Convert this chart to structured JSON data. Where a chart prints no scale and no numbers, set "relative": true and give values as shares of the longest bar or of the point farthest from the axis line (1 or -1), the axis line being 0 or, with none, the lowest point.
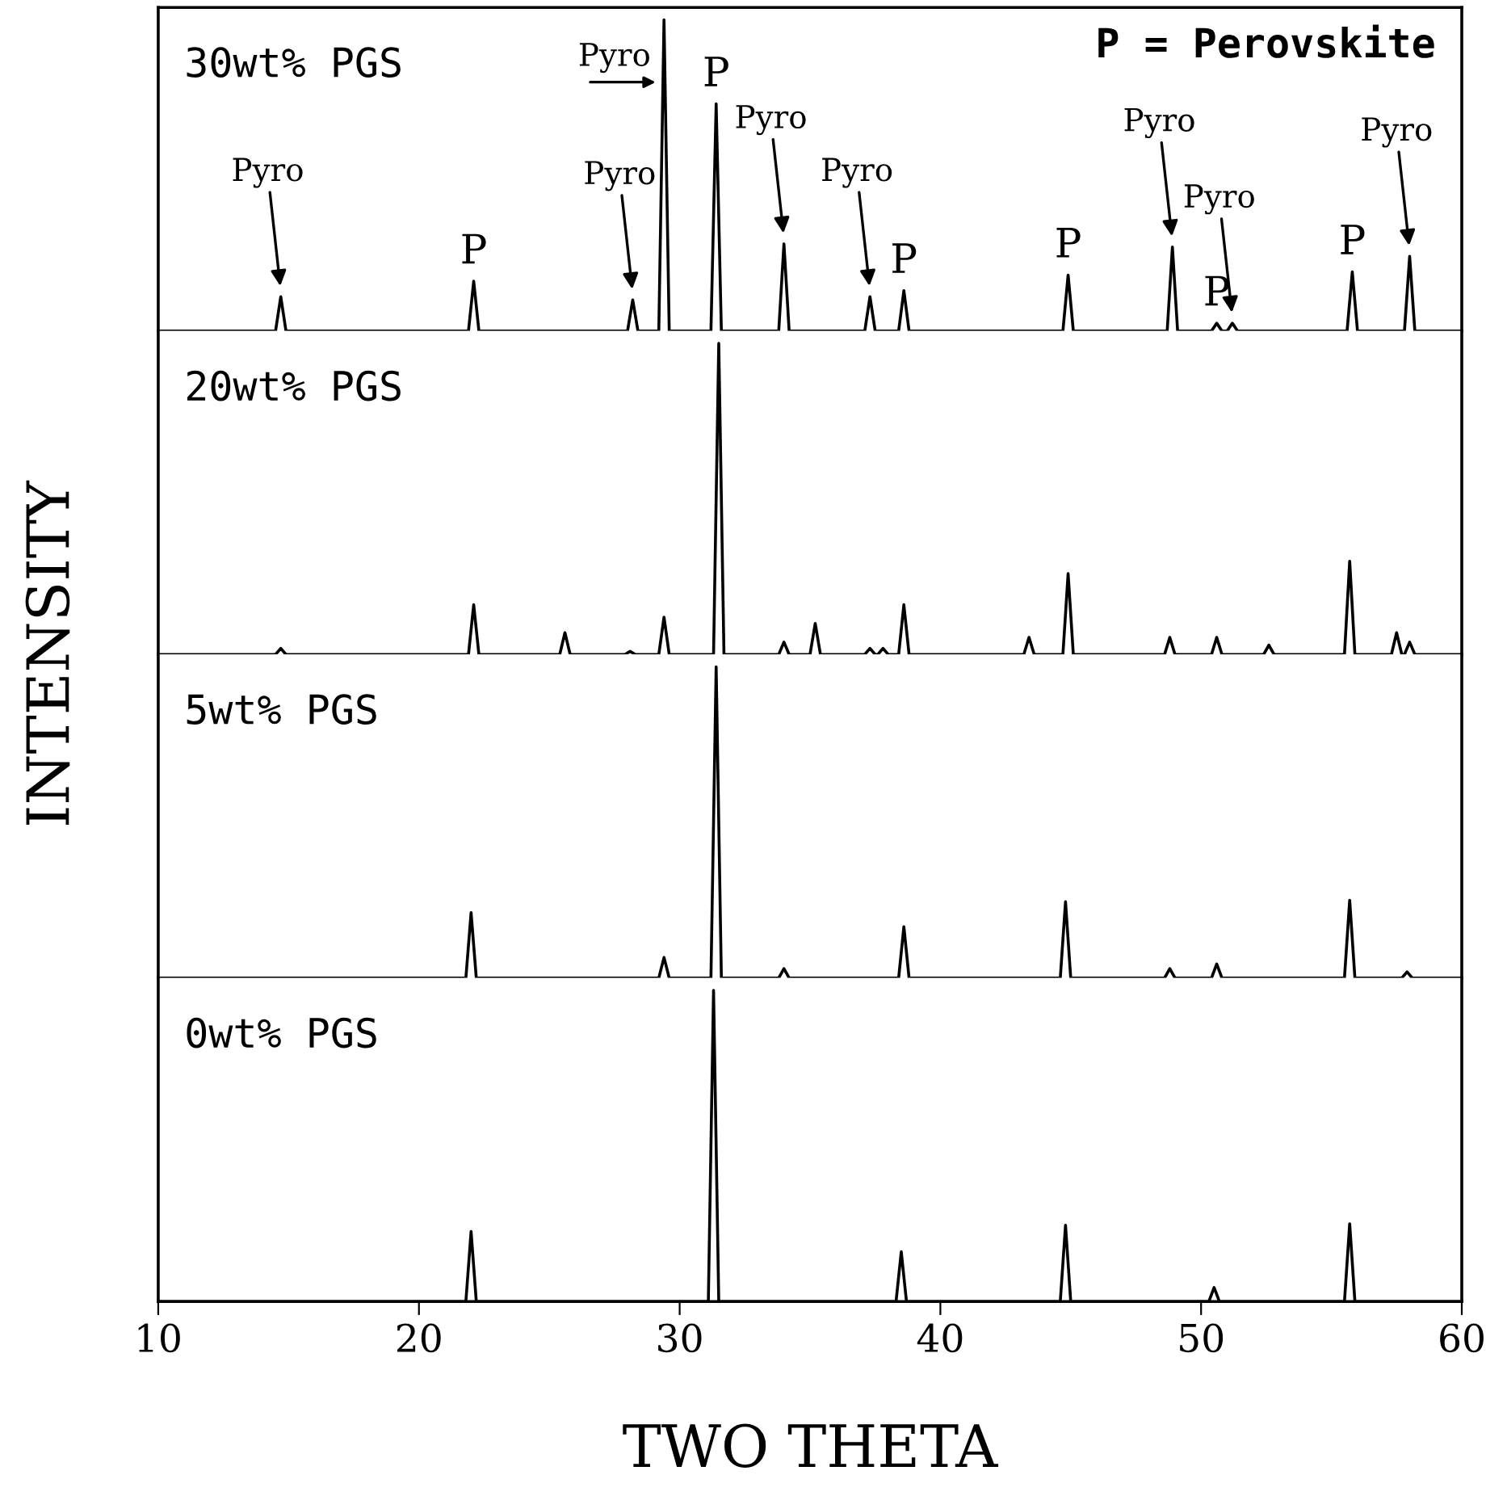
{
  "chart_data": [
    {
      "type": "line",
      "title": "30wt% PGS",
      "ylabel": "INTENSITY",
      "relative": true,
      "xlim": [
        10,
        60
      ],
      "xticks": [
        10,
        20,
        30,
        40,
        50,
        60
      ],
      "tick_labels": false,
      "series": [
        {
          "color": "#000000",
          "x": [
            10,
            14.5,
            14.7,
            14.9,
            21.9,
            22.1,
            22.3,
            28.0,
            28.2,
            28.4,
            29.2,
            29.4,
            29.6,
            31.2,
            31.4,
            31.6,
            33.8,
            34.0,
            34.2,
            37.1,
            37.3,
            37.5,
            38.4,
            38.6,
            38.8,
            44.7,
            44.9,
            45.1,
            48.7,
            48.9,
            49.1,
            50.4,
            50.6,
            50.8,
            51.0,
            51.2,
            51.4,
            55.6,
            55.8,
            56.0,
            57.8,
            58.0,
            58.2,
            60
          ],
          "values": [
            0,
            0,
            0.11,
            0,
            0,
            0.16,
            0,
            0,
            0.1,
            0,
            0,
            1,
            0,
            0,
            0.73,
            0,
            0,
            0.28,
            0,
            0,
            0.11,
            0,
            0,
            0.13,
            0,
            0,
            0.18,
            0,
            0,
            0.27,
            0,
            0,
            0.025,
            0,
            0,
            0.025,
            0,
            0,
            0.19,
            0,
            0,
            0.24,
            0,
            0
          ]
        }
      ],
      "annotations": [
        {
          "text": "Pyro",
          "x": 14.7,
          "y": 0.11
        },
        {
          "text": "Pyro",
          "x": 28.2,
          "y": 0.1
        },
        {
          "text": "Pyro",
          "x": 29.4,
          "y": 0.8
        },
        {
          "text": "Pyro",
          "x": 34.0,
          "y": 0.28
        },
        {
          "text": "Pyro",
          "x": 37.3,
          "y": 0.11
        },
        {
          "text": "Pyro",
          "x": 48.9,
          "y": 0.27
        },
        {
          "text": "Pyro",
          "x": 51.2,
          "y": 0.025
        },
        {
          "text": "Pyro",
          "x": 58.0,
          "y": 0.24
        },
        {
          "text": "P",
          "x": 22.1,
          "y": 0.16
        },
        {
          "text": "P",
          "x": 31.4,
          "y": 0.73
        },
        {
          "text": "P",
          "x": 38.6,
          "y": 0.13
        },
        {
          "text": "P",
          "x": 44.9,
          "y": 0.18
        },
        {
          "text": "P",
          "x": 50.6,
          "y": 0.025
        },
        {
          "text": "P",
          "x": 55.8,
          "y": 0.19
        },
        "P = Perovskite"
      ]
    },
    {
      "type": "line",
      "title": "20wt% PGS",
      "relative": true,
      "xlim": [
        10,
        60
      ],
      "xticks": [
        10,
        20,
        30,
        40,
        50,
        60
      ],
      "tick_labels": false,
      "series": [
        {
          "color": "#000000",
          "x": [
            10,
            14.5,
            14.7,
            14.9,
            21.9,
            22.1,
            22.3,
            25.4,
            25.6,
            25.8,
            27.9,
            28.1,
            28.3,
            29.2,
            29.4,
            29.6,
            31.3,
            31.5,
            31.7,
            33.8,
            34.0,
            34.2,
            35.0,
            35.2,
            35.4,
            37.1,
            37.3,
            37.5,
            37.6,
            37.8,
            38.0,
            38.4,
            38.6,
            38.8,
            43.2,
            43.4,
            43.6,
            44.7,
            44.9,
            45.1,
            48.6,
            48.8,
            49.0,
            50.4,
            50.6,
            50.8,
            52.4,
            52.6,
            52.8,
            55.5,
            55.7,
            55.9,
            57.3,
            57.5,
            57.7,
            57.8,
            58.0,
            58.2,
            60
          ],
          "values": [
            0,
            0,
            0.02,
            0,
            0,
            0.16,
            0,
            0,
            0.07,
            0,
            0,
            0.01,
            0,
            0,
            0.12,
            0,
            0,
            1,
            0,
            0,
            0.04,
            0,
            0,
            0.1,
            0,
            0,
            0.02,
            0,
            0,
            0.02,
            0,
            0,
            0.16,
            0,
            0,
            0.055,
            0,
            0,
            0.26,
            0,
            0,
            0.055,
            0,
            0,
            0.055,
            0,
            0,
            0.03,
            0,
            0,
            0.3,
            0,
            0,
            0.07,
            0,
            0,
            0.04,
            0,
            0
          ]
        }
      ]
    },
    {
      "type": "line",
      "title": "5wt% PGS",
      "relative": true,
      "xlim": [
        10,
        60
      ],
      "xticks": [
        10,
        20,
        30,
        40,
        50,
        60
      ],
      "tick_labels": false,
      "series": [
        {
          "color": "#000000",
          "x": [
            10,
            21.8,
            22.0,
            22.2,
            29.2,
            29.4,
            29.6,
            31.2,
            31.4,
            31.6,
            33.8,
            34.0,
            34.2,
            38.4,
            38.6,
            38.8,
            44.6,
            44.8,
            45.0,
            48.6,
            48.8,
            49.0,
            50.4,
            50.6,
            50.8,
            55.5,
            55.7,
            55.9,
            57.7,
            57.9,
            58.1,
            60
          ],
          "values": [
            0,
            0,
            0.21,
            0,
            0,
            0.066,
            0,
            0,
            1,
            0,
            0,
            0.03,
            0,
            0,
            0.165,
            0,
            0,
            0.245,
            0,
            0,
            0.03,
            0,
            0,
            0.045,
            0,
            0,
            0.25,
            0,
            0,
            0.02,
            0,
            0
          ]
        }
      ]
    },
    {
      "type": "line",
      "title": "0wt% PGS",
      "xlabel": "TWO THETA",
      "relative": true,
      "xlim": [
        10,
        60
      ],
      "xticks": [
        10,
        20,
        30,
        40,
        50,
        60
      ],
      "tick_labels": "x",
      "series": [
        {
          "color": "#000000",
          "x": [
            10,
            21.8,
            22.0,
            22.2,
            31.1,
            31.3,
            31.5,
            38.3,
            38.5,
            38.7,
            44.6,
            44.8,
            45.0,
            50.3,
            50.5,
            50.7,
            55.5,
            55.7,
            55.9,
            60
          ],
          "values": [
            0,
            0,
            0.225,
            0,
            0,
            1,
            0,
            0,
            0.16,
            0,
            0,
            0.245,
            0,
            0,
            0.045,
            0,
            0,
            0.25,
            0,
            0
          ]
        }
      ]
    }
  ]
}
